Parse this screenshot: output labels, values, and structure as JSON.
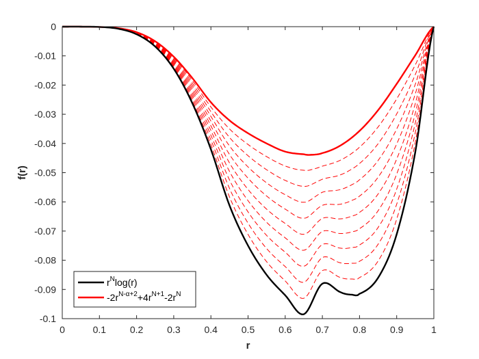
{
  "chart_data": {
    "type": "line",
    "xlabel": "r",
    "ylabel": "f(r)",
    "xlim": [
      0,
      1
    ],
    "ylim": [
      -0.1,
      0
    ],
    "x_ticks": [
      "0",
      "0.1",
      "0.2",
      "0.3",
      "0.4",
      "0.5",
      "0.6",
      "0.7",
      "0.8",
      "0.9",
      "1"
    ],
    "y_ticks": [
      "0",
      "-0.01",
      "-0.02",
      "-0.03",
      "-0.04",
      "-0.05",
      "-0.06",
      "-0.07",
      "-0.08",
      "-0.09",
      "-0.1"
    ],
    "grid": false,
    "legend_position": "bottom-left",
    "series": [
      {
        "name": "r^N log(r)",
        "color": "#000000",
        "style": "solid",
        "x": [
          0,
          0.05,
          0.1,
          0.15,
          0.2,
          0.25,
          0.3,
          0.35,
          0.4,
          0.45,
          0.5,
          0.55,
          0.6,
          0.65,
          0.7,
          0.75,
          0.78,
          0.8,
          0.85,
          0.9,
          0.95,
          1
        ],
        "y": [
          0,
          0,
          -0.0001,
          -0.0007,
          -0.0026,
          -0.0068,
          -0.0144,
          -0.0262,
          -0.042,
          -0.0612,
          -0.075,
          -0.085,
          -0.092,
          -0.0985,
          -0.088,
          -0.091,
          -0.0918,
          -0.0915,
          -0.086,
          -0.0711,
          -0.043,
          0
        ]
      },
      {
        "name": "-2r^{N-α+2}+4r^{N+1}-2r^N",
        "color": "#ff0000",
        "style": "solid",
        "x": [
          0,
          0.05,
          0.1,
          0.15,
          0.2,
          0.25,
          0.3,
          0.35,
          0.4,
          0.45,
          0.5,
          0.55,
          0.6,
          0.65,
          0.667,
          0.7,
          0.75,
          0.8,
          0.85,
          0.9,
          0.95,
          1
        ],
        "y": [
          0,
          0,
          -0.0001,
          -0.0005,
          -0.0019,
          -0.005,
          -0.0103,
          -0.0176,
          -0.0259,
          -0.0321,
          -0.0365,
          -0.04,
          -0.0428,
          -0.0437,
          -0.0439,
          -0.0433,
          -0.0406,
          -0.0357,
          -0.0286,
          -0.0196,
          -0.0098,
          0
        ]
      }
    ],
    "intermediate_curves": {
      "color": "#ff0000",
      "style": "dashed",
      "count": 9
    }
  },
  "legend": {
    "items": [
      {
        "color": "#000000",
        "base": "r",
        "sup": "N",
        "tail": "log(r)"
      },
      {
        "color": "#ff0000",
        "parts": [
          [
            "-2r",
            ""
          ],
          [
            "N-α+2",
            "sup"
          ],
          [
            "+4r",
            ""
          ],
          [
            "N+1",
            "sup"
          ],
          [
            "-2r",
            ""
          ],
          [
            "N",
            "sup"
          ]
        ]
      }
    ]
  }
}
